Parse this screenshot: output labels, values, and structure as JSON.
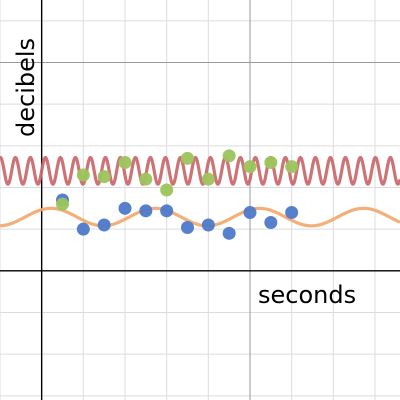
{
  "chart_data": {
    "type": "scatter",
    "xlabel": "seconds",
    "ylabel": "decibels",
    "xlim": [
      -5,
      43
    ],
    "ylim": [
      -15.5,
      32.5
    ],
    "grid": true,
    "colors": {
      "blue_points": "#4e79c9",
      "green_points": "#9cc45c",
      "red_curve": "#c9676a",
      "orange_curve": "#f2a86e"
    },
    "series": [
      {
        "kind": "points",
        "color": "blue_points",
        "x": [
          2.5,
          5,
          7.5,
          10,
          12.5,
          15,
          17.5,
          20,
          22.5,
          25,
          27.5,
          30
        ],
        "y": [
          8.5,
          5,
          5.5,
          7.5,
          7.2,
          7.2,
          5.2,
          5.5,
          4.5,
          7,
          5.8,
          7
        ]
      },
      {
        "kind": "points",
        "color": "green_points",
        "x": [
          2.5,
          5,
          7.5,
          10,
          12.5,
          15,
          17.5,
          20,
          22.5,
          25,
          27.5,
          30
        ],
        "y": [
          8,
          11.5,
          11.3,
          13,
          11,
          9.7,
          13.5,
          11,
          13.8,
          12.5,
          13,
          12.5
        ]
      },
      {
        "kind": "curve",
        "color": "red_curve",
        "amplitude": 1.6,
        "offset": 12,
        "period": 1.8,
        "phase": 0
      },
      {
        "kind": "curve",
        "color": "orange_curve",
        "amplitude": 1.05,
        "offset": 6.45,
        "period": 12.5,
        "phase": 10.5
      }
    ]
  }
}
